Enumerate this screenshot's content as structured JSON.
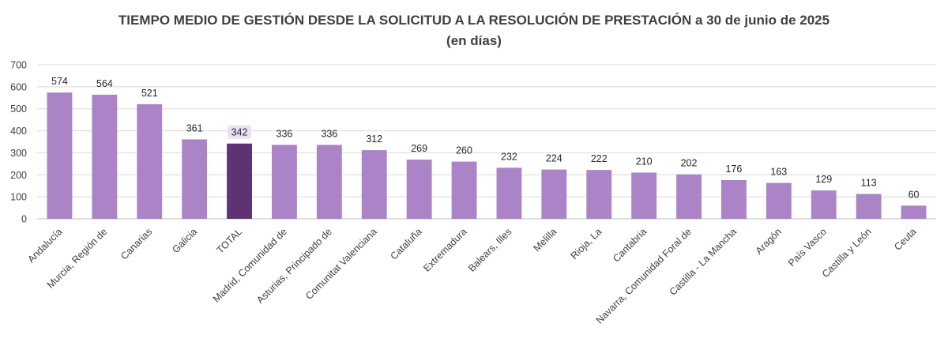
{
  "colors": {
    "bar": "#ab84c8",
    "highlight": "#5f3274",
    "highlight_label_bg": "#ece0f4"
  },
  "chart_data": {
    "type": "bar",
    "title": "TIEMPO MEDIO DE GESTIÓN DESDE LA SOLICITUD A LA RESOLUCIÓN DE PRESTACIÓN a 30 de junio de 2025",
    "subtitle": "(en días)",
    "xlabel": "",
    "ylabel": "",
    "ylim": [
      0,
      700
    ],
    "yticks": [
      0,
      100,
      200,
      300,
      400,
      500,
      600,
      700
    ],
    "grid": true,
    "legend": "none",
    "highlight_category": "TOTAL",
    "categories": [
      "Andalucía",
      "Murcia, Región de",
      "Canarias",
      "Galicia",
      "TOTAL",
      "Madrid, Comunidad de",
      "Asturias, Principado de",
      "Comunitat Valenciana",
      "Cataluña",
      "Extremadura",
      "Balears, Illes",
      "Melilla",
      "Rioja, La",
      "Cantabria",
      "Navarra, Comunidad Foral de",
      "Castilla - La Mancha",
      "Aragón",
      "País Vasco",
      "Castilla y León",
      "Ceuta"
    ],
    "values": [
      574,
      564,
      521,
      361,
      342,
      336,
      336,
      312,
      269,
      260,
      232,
      224,
      222,
      210,
      202,
      176,
      163,
      129,
      113,
      60
    ]
  }
}
